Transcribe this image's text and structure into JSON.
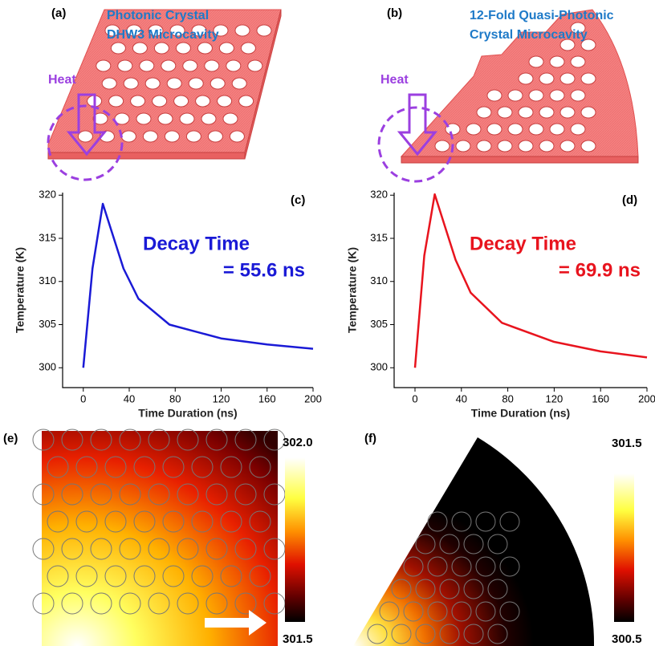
{
  "panels": {
    "a": {
      "label": "(a)",
      "title_lines": [
        "Photonic Crystal",
        "DHW3 Microcavity"
      ],
      "heat": "Heat"
    },
    "b": {
      "label": "(b)",
      "title_lines": [
        "12-Fold Quasi-Photonic",
        "Crystal Microcavity"
      ],
      "heat": "Heat"
    },
    "e": {
      "label": "(e)",
      "colorbar_top": "302.0",
      "colorbar_bottom": "301.5"
    },
    "f": {
      "label": "(f)",
      "colorbar_top": "301.5",
      "colorbar_bottom": "300.5"
    }
  },
  "chart_data": [
    {
      "type": "line",
      "panel_label": "(c)",
      "annotation_lines": [
        "Decay Time",
        "= 55.6 ns"
      ],
      "x_label": "Time Duration (ns)",
      "y_label": "Temperature (K)",
      "x": [
        0,
        8,
        17,
        35,
        48,
        75,
        120,
        160,
        200
      ],
      "values": [
        300,
        311.5,
        319,
        311.5,
        308,
        305,
        303.4,
        302.7,
        302.2
      ],
      "color": "#1a1ad6",
      "xlim": [
        -18,
        200
      ],
      "ylim": [
        297.7,
        320.3
      ],
      "xticks": [
        0,
        40,
        80,
        120,
        160,
        200
      ],
      "yticks": [
        300,
        305,
        310,
        315,
        320
      ]
    },
    {
      "type": "line",
      "panel_label": "(d)",
      "annotation_lines": [
        "Decay Time",
        "= 69.9 ns"
      ],
      "x_label": "Time Duration (ns)",
      "y_label": "Temperature (K)",
      "x": [
        0,
        8,
        17,
        35,
        48,
        75,
        120,
        160,
        200
      ],
      "values": [
        300,
        313,
        320.1,
        312.5,
        308.7,
        305.2,
        303,
        301.9,
        301.2
      ],
      "color": "#e8141e",
      "xlim": [
        -18,
        200
      ],
      "ylim": [
        297.7,
        320.3
      ],
      "xticks": [
        0,
        40,
        80,
        120,
        160,
        200
      ],
      "yticks": [
        300,
        305,
        310,
        315,
        320
      ]
    }
  ]
}
